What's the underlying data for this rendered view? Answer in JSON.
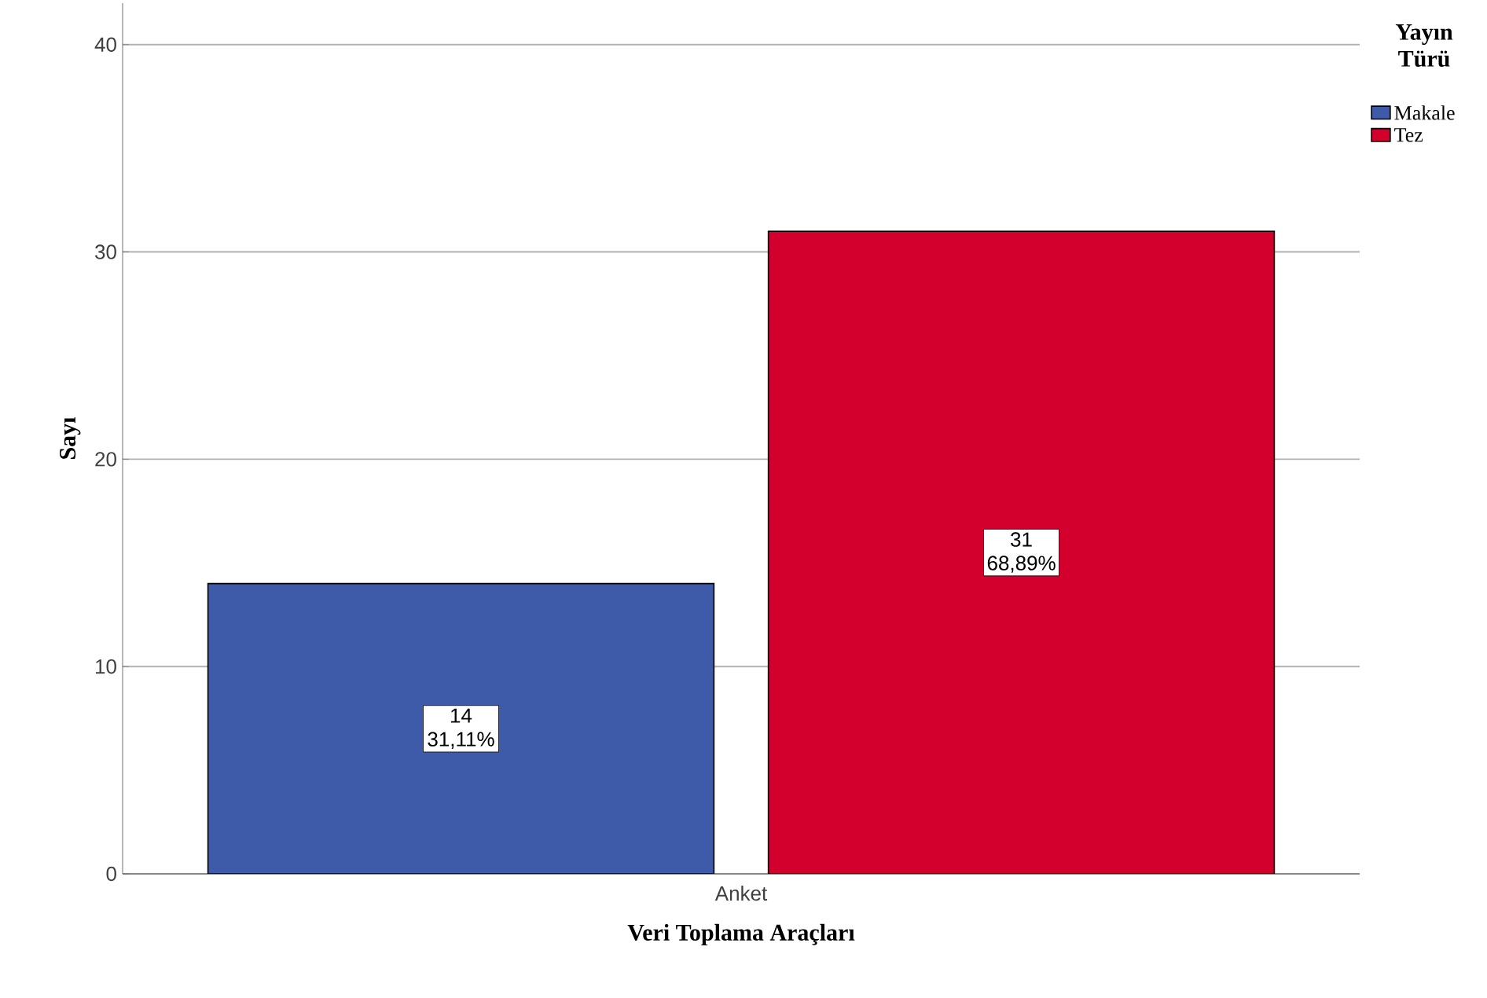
{
  "chart_data": {
    "type": "bar",
    "xlabel": "Veri Toplama Araçları",
    "ylabel": "Sayı",
    "legend_title": "Yayın Türü",
    "categories": [
      "Anket"
    ],
    "series": [
      {
        "name": "Makale",
        "color": "#3e5ba9",
        "values": [
          14
        ],
        "value_labels": [
          "14 31,11%"
        ]
      },
      {
        "name": "Tez",
        "color": "#d3002e",
        "values": [
          31
        ],
        "value_labels": [
          "31 68,89%"
        ]
      }
    ],
    "ylim": [
      0,
      42
    ],
    "yticks": [
      0,
      10,
      20,
      30,
      40
    ],
    "grid": "y",
    "legend": "top right"
  }
}
